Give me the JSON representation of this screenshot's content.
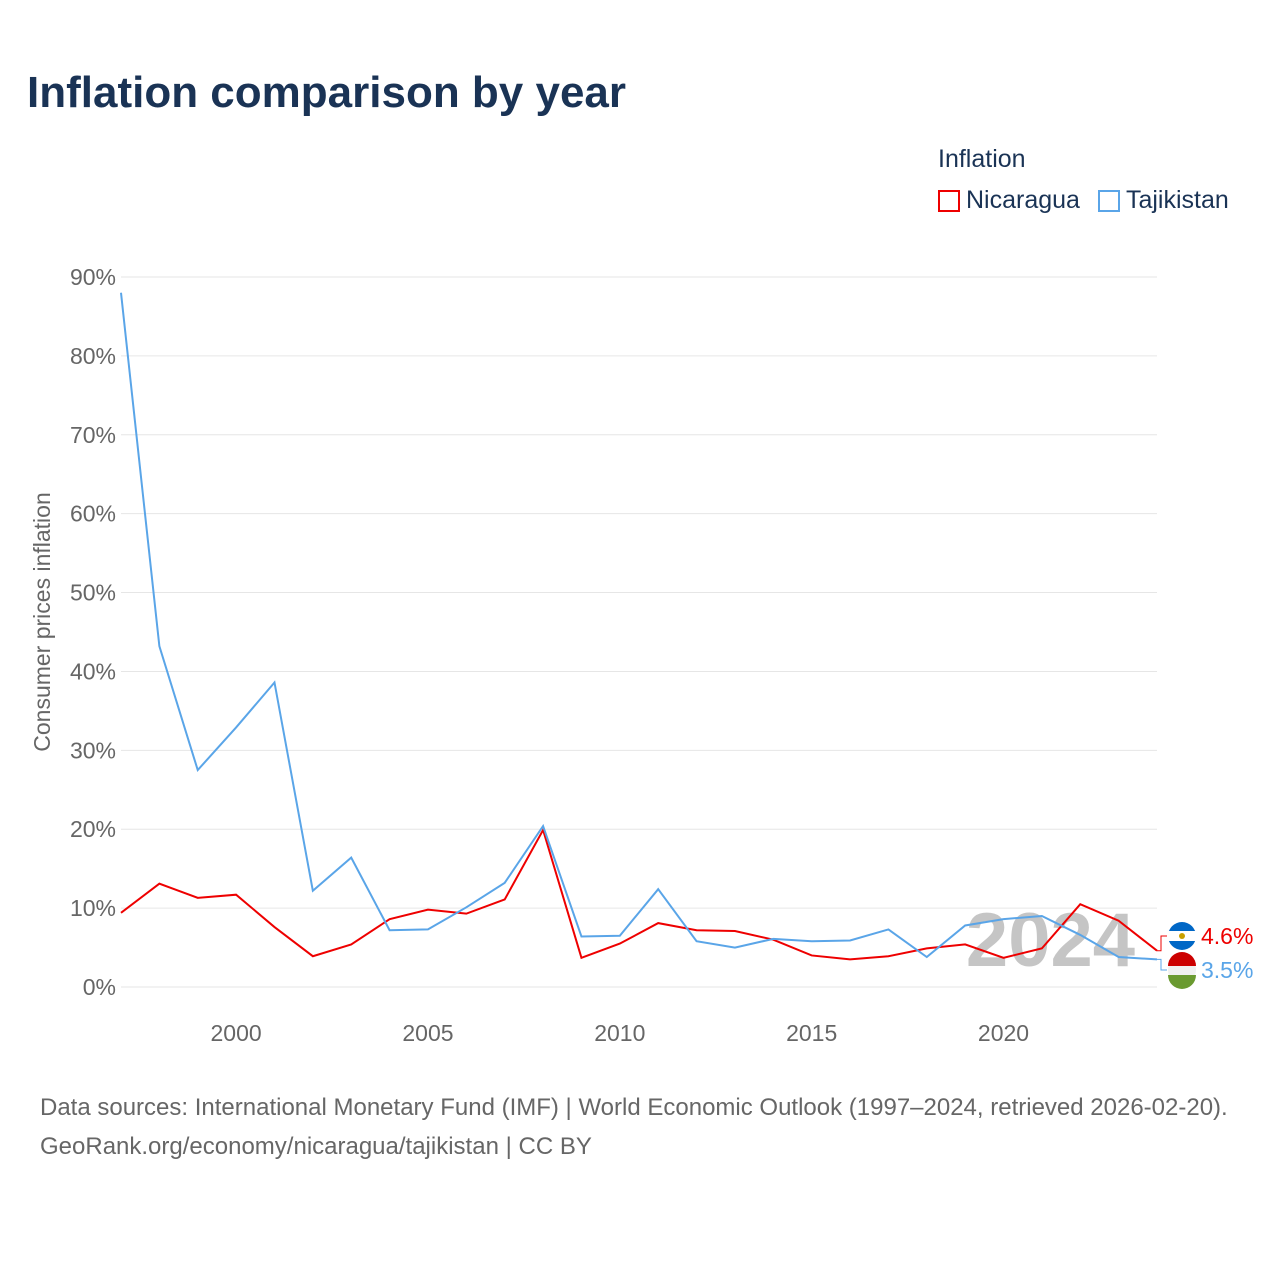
{
  "chart_data": {
    "type": "line",
    "title": "Inflation comparison by year",
    "legend_title": "Inflation",
    "legend_position": "top-right",
    "ylabel": "Consumer prices inflation",
    "xlabel": "",
    "xlim": [
      1997,
      2024
    ],
    "ylim": [
      0,
      90
    ],
    "grid": true,
    "x_ticks": [
      2000,
      2005,
      2010,
      2015,
      2020
    ],
    "y_ticks": [
      0,
      10,
      20,
      30,
      40,
      50,
      60,
      70,
      80,
      90
    ],
    "y_tick_labels": [
      "0%",
      "10%",
      "20%",
      "30%",
      "40%",
      "50%",
      "60%",
      "70%",
      "80%",
      "90%"
    ],
    "watermark_year": "2024",
    "x": [
      1997,
      1998,
      1999,
      2000,
      2001,
      2002,
      2003,
      2004,
      2005,
      2006,
      2007,
      2008,
      2009,
      2010,
      2011,
      2012,
      2013,
      2014,
      2015,
      2016,
      2017,
      2018,
      2019,
      2020,
      2021,
      2022,
      2023,
      2024
    ],
    "series": [
      {
        "name": "Nicaragua",
        "color": "#ee0000",
        "end_label": "4.6%",
        "values": [
          9.4,
          13.1,
          11.3,
          11.7,
          7.6,
          3.9,
          5.4,
          8.6,
          9.8,
          9.3,
          11.1,
          19.9,
          3.7,
          5.5,
          8.1,
          7.2,
          7.1,
          6.0,
          4.0,
          3.5,
          3.9,
          4.9,
          5.4,
          3.7,
          4.9,
          10.5,
          8.4,
          4.6
        ]
      },
      {
        "name": "Tajikistan",
        "color": "#5aa5e8",
        "end_label": "3.5%",
        "values": [
          88.0,
          43.2,
          27.5,
          32.9,
          38.6,
          12.2,
          16.4,
          7.2,
          7.3,
          10.1,
          13.2,
          20.4,
          6.4,
          6.5,
          12.4,
          5.8,
          5.0,
          6.1,
          5.8,
          5.9,
          7.3,
          3.8,
          7.8,
          8.6,
          9.0,
          6.6,
          3.8,
          3.5
        ]
      }
    ]
  },
  "footer": {
    "sources": "Data sources: International Monetary Fund (IMF) | World Economic Outlook (1997–2024, retrieved 2026-02-20).",
    "link": "GeoRank.org/economy/nicaragua/tajikistan | CC BY"
  }
}
